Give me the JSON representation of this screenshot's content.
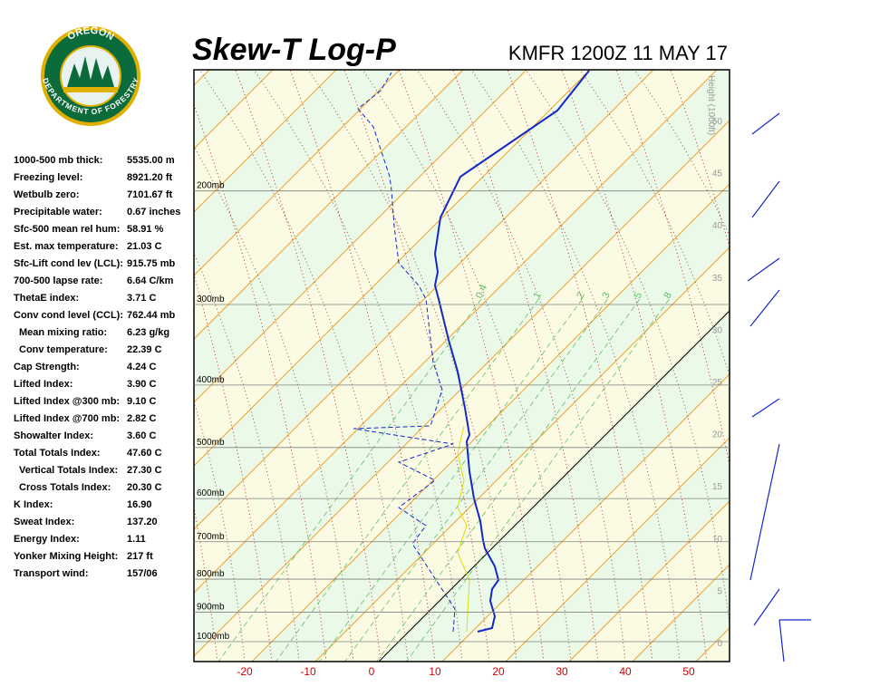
{
  "title": "Skew-T Log-P",
  "station": "KMFR 1200Z 11 MAY 17",
  "logo": {
    "top": "OREGON",
    "bottom": "DEPARTMENT OF FORESTRY"
  },
  "height_axis_label": "Height (1000ft)",
  "indices": [
    {
      "label": "1000-500 mb thick:",
      "value": "5535.00 m"
    },
    {
      "label": "Freezing level:",
      "value": "8921.20 ft"
    },
    {
      "label": "Wetbulb zero:",
      "value": "7101.67 ft"
    },
    {
      "label": "Precipitable water:",
      "value": "0.67 inches"
    },
    {
      "label": "Sfc-500 mean rel hum:",
      "value": "58.91 %"
    },
    {
      "label": "Est. max temperature:",
      "value": "21.03 C"
    },
    {
      "label": "Sfc-Lift cond lev (LCL):",
      "value": "915.75 mb"
    },
    {
      "label": "700-500 lapse rate:",
      "value": "6.64 C/km"
    },
    {
      "label": "ThetaE index:",
      "value": "3.71 C"
    },
    {
      "label": "Conv cond level (CCL):",
      "value": "762.44 mb"
    },
    {
      "label": "Mean mixing ratio:",
      "value": "6.23 g/kg"
    },
    {
      "label": "Conv temperature:",
      "value": "22.39 C"
    },
    {
      "label": "Cap Strength:",
      "value": "4.24 C"
    },
    {
      "label": "Lifted Index:",
      "value": "3.90 C"
    },
    {
      "label": "Lifted Index @300 mb:",
      "value": "9.10 C"
    },
    {
      "label": "Lifted Index @700 mb:",
      "value": "2.82 C"
    },
    {
      "label": "Showalter Index:",
      "value": "3.60 C"
    },
    {
      "label": "Total Totals Index:",
      "value": "47.60 C"
    },
    {
      "label": "Vertical Totals Index:",
      "value": "27.30 C"
    },
    {
      "label": "Cross Totals Index:",
      "value": "20.30 C"
    },
    {
      "label": "K Index:",
      "value": "16.90"
    },
    {
      "label": "Sweat Index:",
      "value": "137.20"
    },
    {
      "label": "Energy Index:",
      "value": "1.11"
    },
    {
      "label": "Yonker Mixing Height:",
      "value": "217 ft"
    },
    {
      "label": "Transport wind:",
      "value": "157/06"
    }
  ],
  "pressure_levels": [
    {
      "value": 200,
      "label": "200mb"
    },
    {
      "value": 300,
      "label": "300mb"
    },
    {
      "value": 400,
      "label": "400mb"
    },
    {
      "value": 500,
      "label": "500mb"
    },
    {
      "value": 600,
      "label": "600mb"
    },
    {
      "value": 700,
      "label": "700mb"
    },
    {
      "value": 800,
      "label": "800mb"
    },
    {
      "value": 900,
      "label": "900mb"
    },
    {
      "value": 1000,
      "label": "1000mb"
    }
  ],
  "height_ticks": [
    0,
    5,
    10,
    15,
    20,
    25,
    30,
    35,
    40,
    45,
    50
  ],
  "xticks": [
    -20,
    -10,
    0,
    10,
    20,
    30,
    40,
    50
  ],
  "mixing_ratio_labels": [
    0.4,
    1,
    2,
    3,
    5,
    8
  ]
}
